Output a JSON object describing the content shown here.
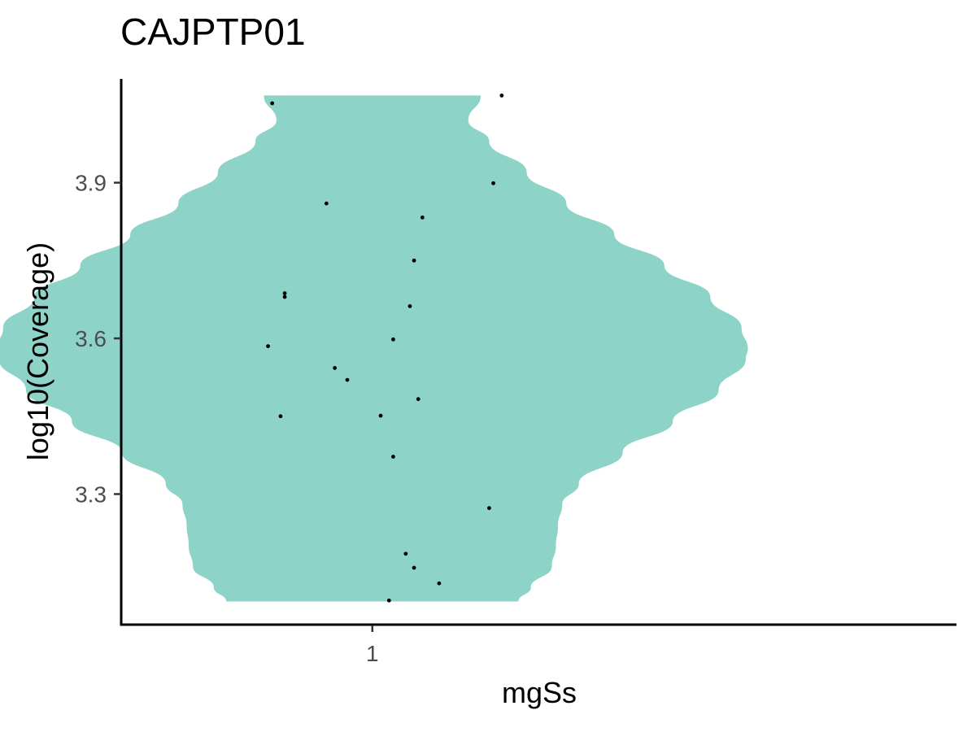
{
  "chart_data": {
    "type": "violin",
    "title": "CAJPTP01",
    "xlabel": "mgSs",
    "ylabel": "log10(Coverage)",
    "categories": [
      "1"
    ],
    "ylim": [
      3.05,
      4.1
    ],
    "yticks": [
      3.3,
      3.6,
      3.9
    ],
    "ytick_labels": [
      "3.3",
      "3.6",
      "3.9"
    ],
    "fill_color": "#8ed3c7",
    "point_color": "#000000",
    "grid": false,
    "legend": "none",
    "violin_range": [
      3.093,
      4.068
    ],
    "density_profile": [
      {
        "y": 3.093,
        "w": 0.7
      },
      {
        "y": 3.12,
        "w": 0.76
      },
      {
        "y": 3.16,
        "w": 0.86
      },
      {
        "y": 3.2,
        "w": 0.88
      },
      {
        "y": 3.24,
        "w": 0.89
      },
      {
        "y": 3.28,
        "w": 0.91
      },
      {
        "y": 3.32,
        "w": 0.99
      },
      {
        "y": 3.38,
        "w": 1.2
      },
      {
        "y": 3.44,
        "w": 1.44
      },
      {
        "y": 3.5,
        "w": 1.66
      },
      {
        "y": 3.56,
        "w": 1.79
      },
      {
        "y": 3.58,
        "w": 1.8
      },
      {
        "y": 3.62,
        "w": 1.77
      },
      {
        "y": 3.68,
        "w": 1.62
      },
      {
        "y": 3.74,
        "w": 1.4
      },
      {
        "y": 3.8,
        "w": 1.16
      },
      {
        "y": 3.86,
        "w": 0.93
      },
      {
        "y": 3.92,
        "w": 0.74
      },
      {
        "y": 3.98,
        "w": 0.56
      },
      {
        "y": 4.02,
        "w": 0.46
      },
      {
        "y": 4.068,
        "w": 0.52
      }
    ],
    "points": [
      {
        "x": 0.76,
        "y": 4.053
      },
      {
        "x": 1.31,
        "y": 4.068
      },
      {
        "x": 1.29,
        "y": 3.899
      },
      {
        "x": 0.89,
        "y": 3.86
      },
      {
        "x": 1.12,
        "y": 3.833
      },
      {
        "x": 1.1,
        "y": 3.75
      },
      {
        "x": 0.79,
        "y": 3.687
      },
      {
        "x": 0.79,
        "y": 3.68
      },
      {
        "x": 1.09,
        "y": 3.662
      },
      {
        "x": 1.05,
        "y": 3.598
      },
      {
        "x": 0.75,
        "y": 3.585
      },
      {
        "x": 0.91,
        "y": 3.543
      },
      {
        "x": 0.94,
        "y": 3.52
      },
      {
        "x": 1.11,
        "y": 3.483
      },
      {
        "x": 0.78,
        "y": 3.45
      },
      {
        "x": 1.02,
        "y": 3.451
      },
      {
        "x": 1.05,
        "y": 3.372
      },
      {
        "x": 1.28,
        "y": 3.273
      },
      {
        "x": 1.08,
        "y": 3.185
      },
      {
        "x": 1.1,
        "y": 3.158
      },
      {
        "x": 1.16,
        "y": 3.128
      },
      {
        "x": 1.04,
        "y": 3.095
      }
    ]
  }
}
